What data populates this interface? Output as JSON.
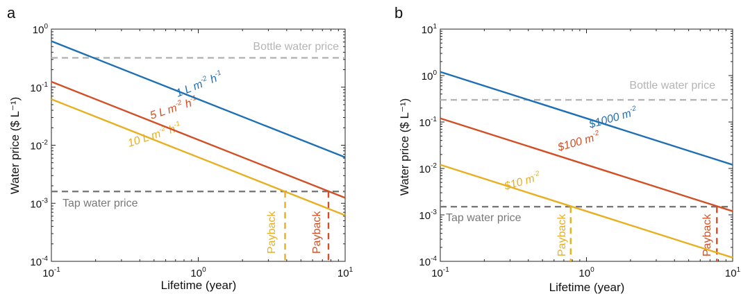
{
  "chart_data": [
    {
      "panel": "a",
      "type": "line",
      "xlabel": "Lifetime (year)",
      "ylabel": "Water price ($ L⁻¹)",
      "xscale": "log",
      "yscale": "log",
      "xlim": [
        0.1,
        10
      ],
      "ylim": [
        0.0001,
        1
      ],
      "x_ticks": [
        {
          "base": "10",
          "exp": "-1"
        },
        {
          "base": "10",
          "exp": "0"
        },
        {
          "base": "10",
          "exp": "1"
        }
      ],
      "y_ticks": [
        {
          "base": "10",
          "exp": "-4"
        },
        {
          "base": "10",
          "exp": "-3"
        },
        {
          "base": "10",
          "exp": "-2"
        },
        {
          "base": "10",
          "exp": "-1"
        },
        {
          "base": "10",
          "exp": "0"
        }
      ],
      "series": [
        {
          "label_main": "1 L m",
          "label_sup1": "-2",
          "label_mid": " h",
          "label_sup2": "-1",
          "color": "#1f6fb5",
          "x": [
            0.1,
            10
          ],
          "y": [
            0.62,
            0.0062
          ]
        },
        {
          "label_main": "5 L m",
          "label_sup1": "-2",
          "label_mid": " h",
          "label_sup2": "-1",
          "color": "#d24f25",
          "x": [
            0.1,
            10
          ],
          "y": [
            0.124,
            0.00124
          ]
        },
        {
          "label_main": "10 L m",
          "label_sup1": "-2",
          "label_mid": " h",
          "label_sup2": "-1",
          "color": "#e8b020",
          "x": [
            0.1,
            10
          ],
          "y": [
            0.062,
            0.00062
          ]
        }
      ],
      "reference_lines": [
        {
          "label": "Bottle water price",
          "color": "#b4b4b4",
          "y": 0.32
        },
        {
          "label": "Tap water price",
          "color": "#787878",
          "y": 0.0016
        }
      ],
      "payback": [
        {
          "label": "Payback",
          "color": "#e8b020",
          "x": 3.9
        },
        {
          "label": "Payback",
          "color": "#d24f25",
          "x": 7.7
        }
      ]
    },
    {
      "panel": "b",
      "type": "line",
      "xlabel": "Lifetime (year)",
      "ylabel": "Water price ($ L⁻¹)",
      "xscale": "log",
      "yscale": "log",
      "xlim": [
        0.1,
        10
      ],
      "ylim": [
        0.0001,
        10
      ],
      "x_ticks": [
        {
          "base": "10",
          "exp": "-1"
        },
        {
          "base": "10",
          "exp": "0"
        },
        {
          "base": "10",
          "exp": "1"
        }
      ],
      "y_ticks": [
        {
          "base": "10",
          "exp": "-4"
        },
        {
          "base": "10",
          "exp": "-3"
        },
        {
          "base": "10",
          "exp": "-2"
        },
        {
          "base": "10",
          "exp": "-1"
        },
        {
          "base": "10",
          "exp": "0"
        },
        {
          "base": "10",
          "exp": "1"
        }
      ],
      "series": [
        {
          "label_main": "$1000 m",
          "label_sup1": "-2",
          "label_mid": "",
          "label_sup2": "",
          "color": "#1f6fb5",
          "x": [
            0.1,
            10
          ],
          "y": [
            1.2,
            0.012
          ]
        },
        {
          "label_main": "$100 m",
          "label_sup1": "-2",
          "label_mid": "",
          "label_sup2": "",
          "color": "#d24f25",
          "x": [
            0.1,
            10
          ],
          "y": [
            0.12,
            0.0012
          ]
        },
        {
          "label_main": "$10 m",
          "label_sup1": "-2",
          "label_mid": "",
          "label_sup2": "",
          "color": "#e8b020",
          "x": [
            0.1,
            10
          ],
          "y": [
            0.012,
            0.00012
          ]
        }
      ],
      "reference_lines": [
        {
          "label": "Bottle water price",
          "color": "#b4b4b4",
          "y": 0.3
        },
        {
          "label": "Tap water price",
          "color": "#787878",
          "y": 0.0015
        }
      ],
      "payback": [
        {
          "label": "Payback",
          "color": "#e8b020",
          "x": 0.78
        },
        {
          "label": "Payback",
          "color": "#d24f25",
          "x": 7.8
        }
      ]
    }
  ]
}
